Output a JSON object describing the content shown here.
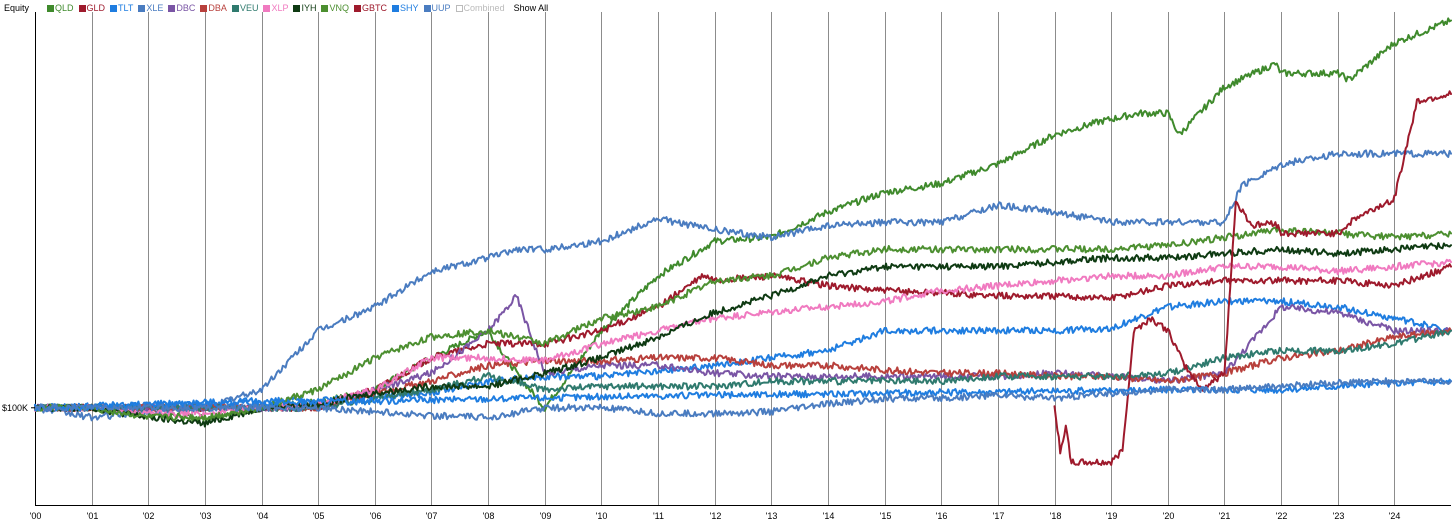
{
  "legend": {
    "title": "Equity",
    "show_all_label": "Show All",
    "items": [
      {
        "label": "QLD",
        "color": "#3f8a2c",
        "enabled": true
      },
      {
        "label": "GLD",
        "color": "#9e1a2c",
        "enabled": true
      },
      {
        "label": "TLT",
        "color": "#1f7de0",
        "enabled": true
      },
      {
        "label": "XLE",
        "color": "#4a7cc0",
        "enabled": true
      },
      {
        "label": "DBC",
        "color": "#7a55a5",
        "enabled": true
      },
      {
        "label": "DBA",
        "color": "#b8403c",
        "enabled": true
      },
      {
        "label": "VEU",
        "color": "#2f7a6e",
        "enabled": true
      },
      {
        "label": "XLP",
        "color": "#f07ac0",
        "enabled": true
      },
      {
        "label": "IYH",
        "color": "#0e3a12",
        "enabled": true
      },
      {
        "label": "VNQ",
        "color": "#4c8f30",
        "enabled": true
      },
      {
        "label": "GBTC",
        "color": "#9e1a2c",
        "enabled": true
      },
      {
        "label": "SHY",
        "color": "#1f7de0",
        "enabled": true
      },
      {
        "label": "UUP",
        "color": "#4a7cc0",
        "enabled": true
      },
      {
        "label": "Combined",
        "color": "#bbbbbb",
        "enabled": false
      }
    ]
  },
  "chart_data": {
    "type": "line",
    "title": "Equity",
    "x_tick_labels": [
      "'00",
      "'01",
      "'02",
      "'03",
      "'04",
      "'05",
      "'06",
      "'07",
      "'08",
      "'09",
      "'10",
      "'11",
      "'12",
      "'13",
      "'14",
      "'15",
      "'16",
      "'17",
      "'18",
      "'19",
      "'20",
      "'21",
      "'22",
      "'23",
      "'24"
    ],
    "xlim": [
      2000.0,
      2025.0
    ],
    "y_labels": [
      {
        "value": 100,
        "label": "$100K"
      }
    ],
    "ylabel_units": "thousands USD",
    "ylim": [
      60,
      800
    ],
    "grid": {
      "vertical": true,
      "horizontal": false
    },
    "legend_position": "top-left",
    "series": [
      {
        "name": "QLD",
        "color": "#3f8a2c",
        "x": [
          2000.0,
          2001.0,
          2002.0,
          2003.0,
          2004.0,
          2005.0,
          2006.0,
          2007.0,
          2008.0,
          2008.5,
          2009.0,
          2010.0,
          2011.0,
          2012.0,
          2013.0,
          2014.0,
          2015.0,
          2016.0,
          2017.0,
          2018.0,
          2018.8,
          2019.5,
          2020.0,
          2020.2,
          2021.0,
          2021.9,
          2022.0,
          2023.0,
          2023.2,
          2024.0,
          2025.0
        ],
        "y": [
          100,
          100,
          97,
          95,
          100,
          103,
          110,
          130,
          150,
          120,
          100,
          150,
          200,
          240,
          245,
          280,
          310,
          325,
          360,
          420,
          450,
          470,
          470,
          420,
          540,
          610,
          580,
          580,
          560,
          680,
          765
        ]
      },
      {
        "name": "GLD",
        "color": "#9e1a2c",
        "x": [
          2000.0,
          2002.0,
          2003.0,
          2005.0,
          2006.0,
          2007.0,
          2008.0,
          2009.0,
          2010.0,
          2011.0,
          2011.8,
          2012.0,
          2013.0,
          2014.0,
          2015.0,
          2016.0,
          2017.0,
          2018.0,
          2019.0,
          2020.0,
          2021.0,
          2022.0,
          2023.0,
          2024.0,
          2025.0
        ],
        "y": [
          100,
          100,
          100,
          100,
          110,
          130,
          140,
          140,
          150,
          170,
          200,
          195,
          200,
          190,
          185,
          183,
          180,
          180,
          178,
          190,
          195,
          195,
          195,
          190,
          210
        ]
      },
      {
        "name": "TLT",
        "color": "#1f7de0",
        "x": [
          2000.0,
          2002.0,
          2003.0,
          2005.0,
          2007.0,
          2008.0,
          2009.0,
          2010.0,
          2011.0,
          2012.0,
          2013.0,
          2014.0,
          2015.0,
          2016.0,
          2017.0,
          2018.0,
          2019.0,
          2020.0,
          2021.0,
          2022.0,
          2023.0,
          2024.0,
          2025.0
        ],
        "y": [
          100,
          102,
          103,
          104,
          108,
          115,
          118,
          118,
          121,
          125,
          130,
          135,
          150,
          150,
          150,
          150,
          152,
          170,
          175,
          175,
          170,
          160,
          150
        ]
      },
      {
        "name": "XLE",
        "color": "#4a7cc0",
        "x": [
          2000.0,
          2001.0,
          2002.0,
          2003.0,
          2004.0,
          2005.0,
          2006.0,
          2007.0,
          2008.0,
          2008.5,
          2009.0,
          2010.0,
          2011.0,
          2012.0,
          2013.0,
          2014.0,
          2015.0,
          2016.0,
          2017.0,
          2018.0,
          2019.0,
          2020.0,
          2021.0,
          2021.3,
          2022.0,
          2023.0,
          2024.0,
          2025.0
        ],
        "y": [
          100,
          95,
          98,
          100,
          110,
          150,
          170,
          205,
          220,
          230,
          230,
          240,
          270,
          255,
          245,
          260,
          265,
          265,
          290,
          280,
          265,
          265,
          265,
          320,
          360,
          380,
          380,
          380
        ]
      },
      {
        "name": "DBC",
        "color": "#7a55a5",
        "x": [
          2000.0,
          2005.0,
          2006.0,
          2007.0,
          2008.0,
          2008.5,
          2009.0,
          2010.0,
          2011.0,
          2012.0,
          2013.0,
          2014.0,
          2015.0,
          2016.0,
          2017.0,
          2018.0,
          2019.0,
          2020.0,
          2021.0,
          2022.0,
          2023.0,
          2024.0,
          2025.0
        ],
        "y": [
          100,
          100,
          110,
          120,
          150,
          180,
          120,
          125,
          125,
          120,
          118,
          118,
          118,
          118,
          118,
          120,
          118,
          115,
          120,
          170,
          165,
          150,
          150
        ]
      },
      {
        "name": "DBA",
        "color": "#b8403c",
        "x": [
          2000.0,
          2005.0,
          2006.0,
          2007.0,
          2008.0,
          2009.0,
          2010.0,
          2011.0,
          2012.0,
          2013.0,
          2014.0,
          2015.0,
          2016.0,
          2017.0,
          2018.0,
          2019.0,
          2020.0,
          2021.0,
          2022.0,
          2023.0,
          2024.0,
          2025.0
        ],
        "y": [
          100,
          100,
          108,
          115,
          125,
          128,
          128,
          130,
          130,
          125,
          125,
          122,
          120,
          120,
          118,
          118,
          115,
          120,
          130,
          135,
          145,
          150
        ]
      },
      {
        "name": "VEU",
        "color": "#2f7a6e",
        "x": [
          2000.0,
          2005.0,
          2006.0,
          2007.0,
          2008.0,
          2009.0,
          2010.0,
          2011.0,
          2012.0,
          2013.0,
          2014.0,
          2015.0,
          2016.0,
          2017.0,
          2018.0,
          2019.0,
          2020.0,
          2021.0,
          2022.0,
          2023.0,
          2024.0,
          2025.0
        ],
        "y": [
          100,
          100,
          105,
          110,
          118,
          110,
          112,
          112,
          112,
          115,
          115,
          115,
          115,
          118,
          118,
          118,
          120,
          130,
          135,
          135,
          140,
          150
        ]
      },
      {
        "name": "XLP",
        "color": "#f07ac0",
        "x": [
          2000.0,
          2001.0,
          2002.0,
          2003.0,
          2004.0,
          2005.0,
          2006.0,
          2007.0,
          2008.0,
          2009.0,
          2010.0,
          2011.0,
          2012.0,
          2013.0,
          2014.0,
          2015.0,
          2016.0,
          2017.0,
          2018.0,
          2019.0,
          2020.0,
          2021.0,
          2022.0,
          2023.0,
          2024.0,
          2025.0
        ],
        "y": [
          100,
          100,
          97,
          97,
          100,
          102,
          110,
          130,
          130,
          128,
          140,
          150,
          160,
          165,
          170,
          175,
          185,
          190,
          195,
          200,
          200,
          210,
          210,
          205,
          210,
          215
        ]
      },
      {
        "name": "IYH",
        "color": "#0e3a12",
        "x": [
          2000.0,
          2001.0,
          2002.0,
          2003.0,
          2004.0,
          2005.0,
          2006.0,
          2007.0,
          2008.0,
          2009.0,
          2010.0,
          2011.0,
          2012.0,
          2013.0,
          2014.0,
          2015.0,
          2016.0,
          2017.0,
          2018.0,
          2019.0,
          2020.0,
          2021.0,
          2022.0,
          2023.0,
          2024.0,
          2025.0
        ],
        "y": [
          100,
          100,
          95,
          92,
          100,
          102,
          108,
          112,
          112,
          120,
          130,
          145,
          165,
          180,
          200,
          210,
          210,
          210,
          215,
          220,
          220,
          225,
          230,
          225,
          230,
          235
        ]
      },
      {
        "name": "VNQ",
        "color": "#4c8f30",
        "x": [
          2000.0,
          2001.0,
          2002.0,
          2003.0,
          2004.0,
          2005.0,
          2006.0,
          2007.0,
          2008.0,
          2009.0,
          2010.0,
          2011.0,
          2012.0,
          2013.0,
          2014.0,
          2015.0,
          2016.0,
          2017.0,
          2018.0,
          2019.0,
          2020.0,
          2021.0,
          2022.0,
          2023.0,
          2024.0,
          2025.0
        ],
        "y": [
          100,
          100,
          95,
          95,
          100,
          110,
          130,
          145,
          150,
          140,
          160,
          170,
          195,
          200,
          220,
          230,
          230,
          230,
          230,
          230,
          235,
          245,
          255,
          250,
          245,
          250
        ]
      },
      {
        "name": "GBTC",
        "color": "#9e1a2c",
        "x": [
          2018.0,
          2018.1,
          2018.2,
          2018.3,
          2019.0,
          2019.2,
          2019.4,
          2019.7,
          2020.0,
          2020.3,
          2020.6,
          2021.0,
          2021.2,
          2021.5,
          2021.9,
          2022.0,
          2023.0,
          2023.3,
          2024.0,
          2024.4,
          2025.0
        ],
        "y": [
          100,
          80,
          90,
          75,
          75,
          80,
          150,
          160,
          150,
          125,
          110,
          120,
          295,
          260,
          265,
          250,
          250,
          270,
          300,
          500,
          520
        ]
      },
      {
        "name": "SHY",
        "color": "#1f7de0",
        "x": [
          2000.0,
          2005.0,
          2010.0,
          2015.0,
          2020.0,
          2022.0,
          2023.0,
          2025.0
        ],
        "y": [
          100,
          103,
          106,
          108,
          110,
          110,
          112,
          115
        ]
      },
      {
        "name": "UUP",
        "color": "#4a7cc0",
        "x": [
          2000.0,
          2005.0,
          2007.0,
          2008.0,
          2009.0,
          2010.0,
          2011.0,
          2012.0,
          2013.0,
          2014.0,
          2015.0,
          2016.0,
          2017.0,
          2018.0,
          2019.0,
          2020.0,
          2021.0,
          2022.0,
          2023.0,
          2024.0,
          2025.0
        ],
        "y": [
          100,
          100,
          96,
          95,
          100,
          100,
          97,
          97,
          98,
          102,
          105,
          105,
          107,
          105,
          108,
          110,
          110,
          112,
          114,
          115,
          115
        ]
      }
    ]
  }
}
